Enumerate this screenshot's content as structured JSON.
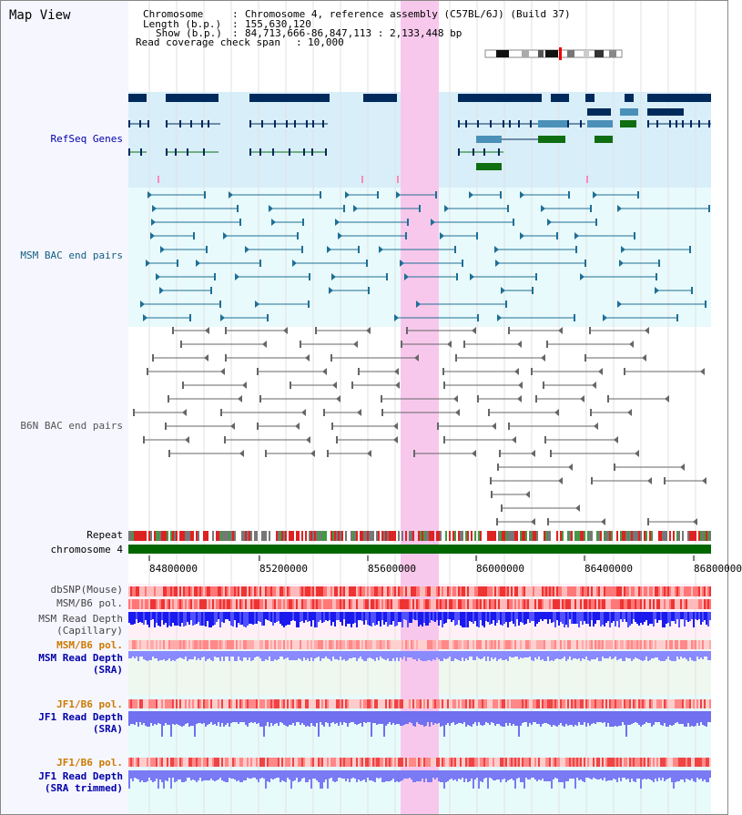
{
  "header": {
    "title": "Map View",
    "chromosome_key": "Chromosome",
    "chromosome_value": "Chromosome 4, reference assembly (C57BL/6J) (Build 37)",
    "length_key": "Length (b.p.)",
    "length_value": "155,630,120",
    "show_key": "Show (b.p.)",
    "show_value": "84,713,666-86,847,113 : 2,133,448 bp",
    "coverage_key": "Read coverage check span",
    "coverage_value": "10,000"
  },
  "colors": {
    "refseq_bg": "#d8eef9",
    "bac_bg": "#e8fafc",
    "highlight": "#f7c8ec",
    "refseq_gene_dark": "#002a5c",
    "refseq_gene_blue": "#4a90b8",
    "refseq_gene_green": "#0f6e12",
    "msm_bac": "#1f6f95",
    "b6n_bac": "#666666",
    "chromosome_bar": "#006600",
    "depth_blue": "#2020ee",
    "depth_light": "#8080ff",
    "jf1_depth": "#7070f0",
    "label_blue": "#0000aa",
    "label_orange": "#cc7a00",
    "label_teal": "#106080"
  },
  "tracks": {
    "refseq": "RefSeq Genes",
    "msm_bac": "MSM BAC end pairs",
    "b6n_bac": "B6N BAC end pairs",
    "repeat": "Repeat",
    "chromosome": "chromosome 4",
    "dbsnp": "dbSNP(Mouse)",
    "msm_b6_pol_1": "MSM/B6 pol.",
    "msm_depth_cap_1": "MSM Read Depth",
    "msm_depth_cap_2": "(Capillary)",
    "msm_b6_pol_2": "MSM/B6 pol.",
    "msm_depth_sra_1": "MSM Read Depth",
    "msm_depth_sra_2": "(SRA)",
    "jf1_b6_pol_1": "JF1/B6 pol.",
    "jf1_depth_sra_1": "JF1 Read Depth",
    "jf1_depth_sra_2": "(SRA)",
    "jf1_b6_pol_2": "JF1/B6 pol.",
    "jf1_depth_trim_1": "JF1 Read Depth",
    "jf1_depth_trim_2": "(SRA trimmed)"
  },
  "axis": {
    "ticks": [
      "84800000",
      "85200000",
      "85600000",
      "86000000",
      "86400000",
      "86800000"
    ]
  }
}
